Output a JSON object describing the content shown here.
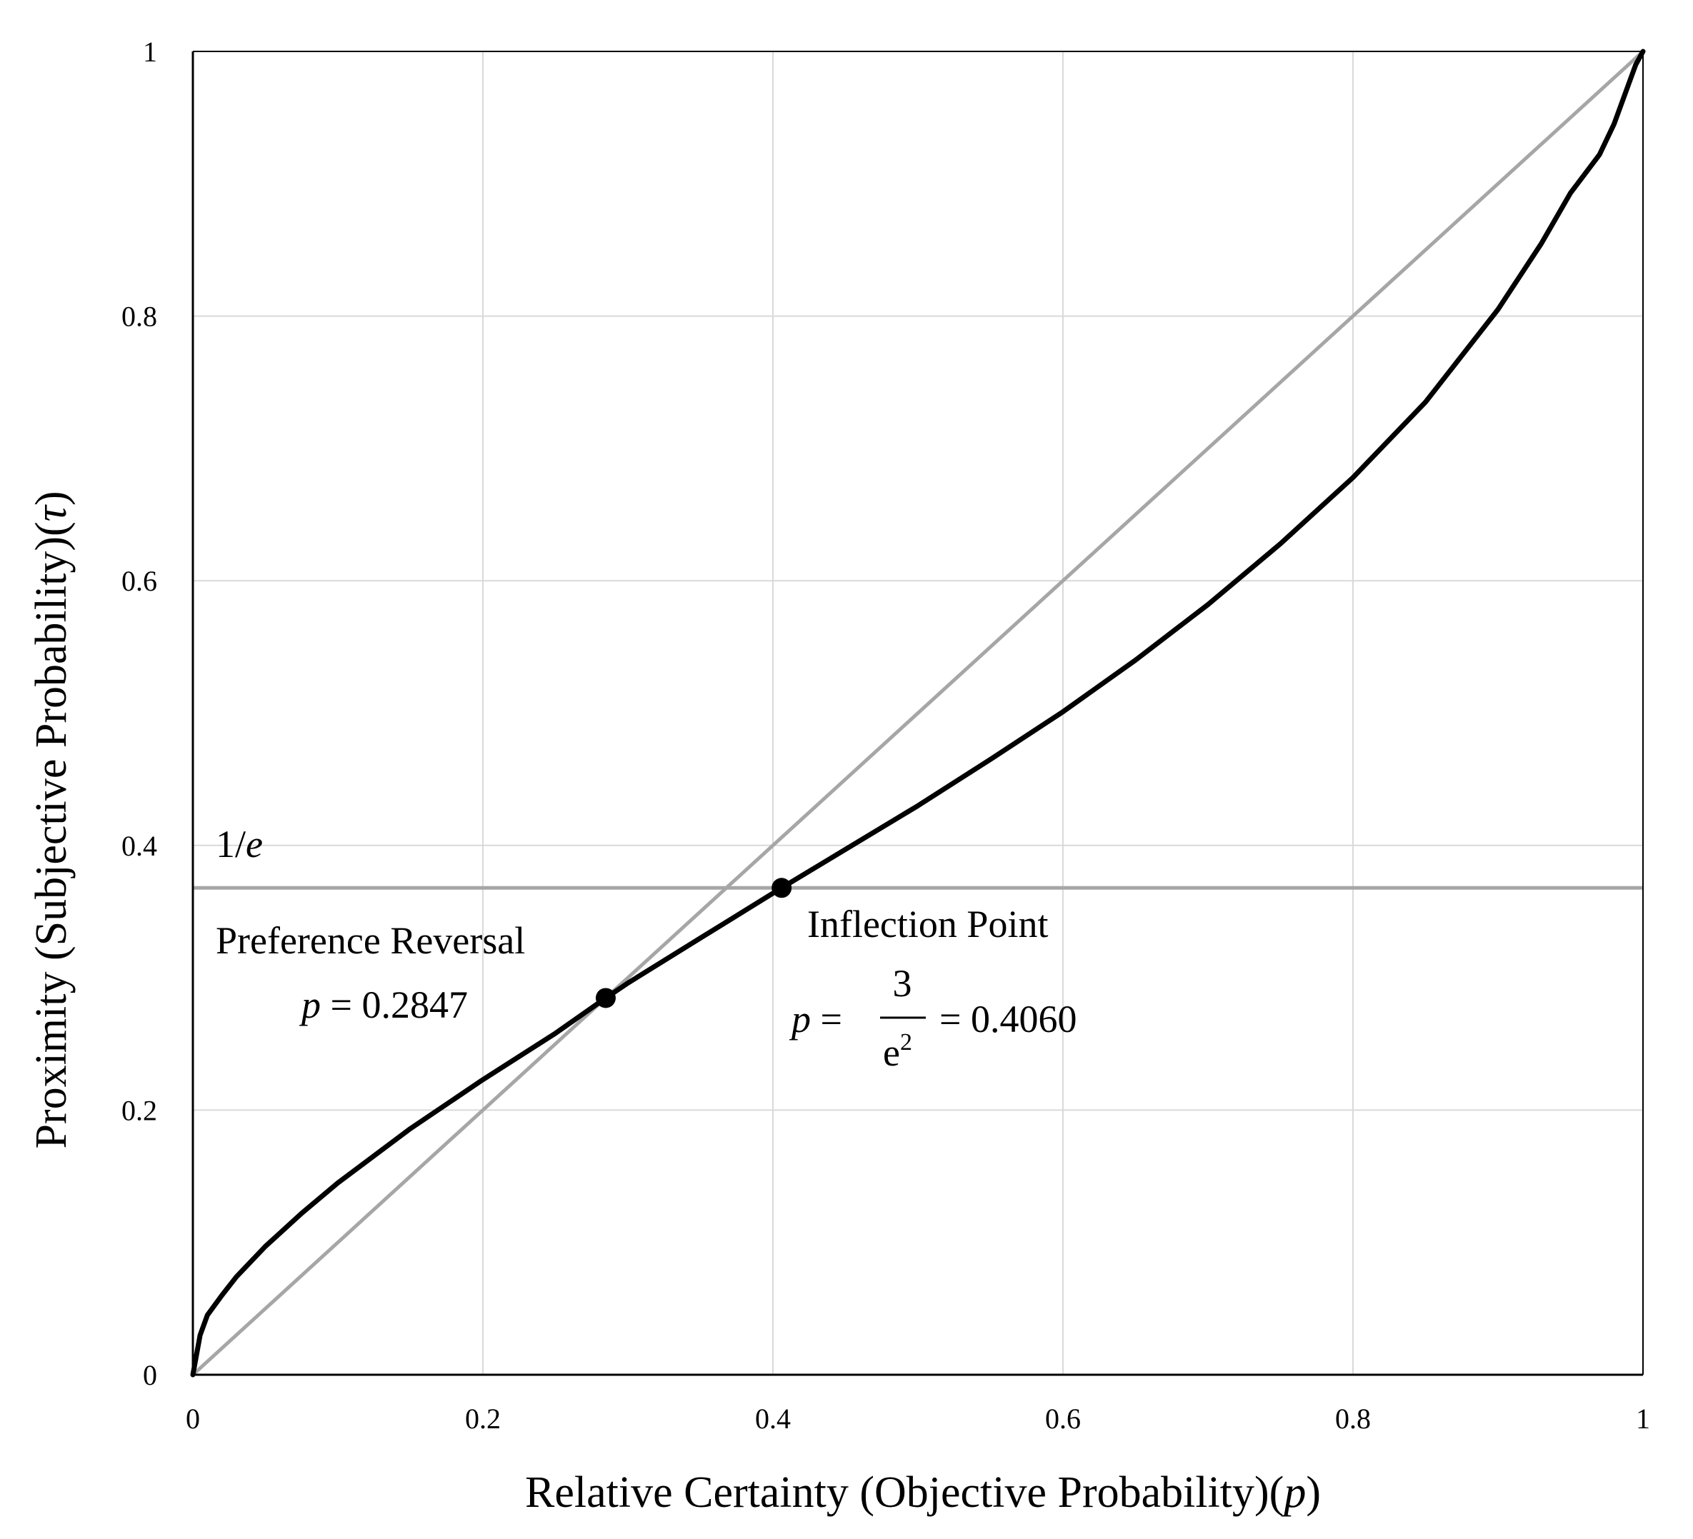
{
  "chart_data": {
    "type": "line",
    "xlabel_main": "Relative Certainty (Objective Probability)(",
    "xlabel_var": "p",
    "xlabel_close": ")",
    "ylabel_main": "Proximity (Subjective Probability)(",
    "ylabel_var": "τ",
    "ylabel_close": ")",
    "xlim": [
      0,
      1
    ],
    "ylim": [
      0,
      1
    ],
    "x_ticks": [
      "0",
      "0.2",
      "0.4",
      "0.6",
      "0.8",
      "1"
    ],
    "y_ticks": [
      "0",
      "0.2",
      "0.4",
      "0.6",
      "0.8",
      "1"
    ],
    "grid": true,
    "colors": {
      "curve": "#000000",
      "diagonal": "#a6a6a6",
      "reference_line": "#a6a6a6",
      "grid": "#d9d9d9"
    },
    "series": [
      {
        "style": "solid-black",
        "x": [
          0,
          0.005,
          0.01,
          0.02,
          0.03,
          0.05,
          0.075,
          0.1,
          0.15,
          0.2,
          0.25,
          0.2847,
          0.3,
          0.35,
          0.406,
          0.45,
          0.5,
          0.55,
          0.6,
          0.65,
          0.7,
          0.75,
          0.8,
          0.85,
          0.9,
          0.93,
          0.95,
          0.97,
          0.98,
          0.99,
          0.995,
          1.0
        ],
        "y": [
          0,
          0.03,
          0.045,
          0.06,
          0.074,
          0.097,
          0.122,
          0.145,
          0.186,
          0.223,
          0.258,
          0.2847,
          0.296,
          0.33,
          0.3679,
          0.397,
          0.43,
          0.465,
          0.501,
          0.54,
          0.582,
          0.628,
          0.678,
          0.735,
          0.805,
          0.855,
          0.893,
          0.922,
          0.945,
          0.975,
          0.99,
          1.0
        ]
      },
      {
        "style": "gray-diagonal",
        "x": [
          0,
          1
        ],
        "y": [
          0,
          1
        ]
      }
    ],
    "reference_line": {
      "y": 0.3679,
      "label_prefix": "1/",
      "label_var": "e"
    },
    "points": [
      {
        "x": 0.2847,
        "y": 0.2847
      },
      {
        "x": 0.406,
        "y": 0.3679
      }
    ],
    "annotations": {
      "preference_reversal": {
        "title": "Preference Reversal",
        "var": "p",
        "eq": " = 0.2847"
      },
      "inflection_point": {
        "title": "Inflection Point",
        "var": "p",
        "eq": " =",
        "frac_num": "3",
        "frac_den": "e",
        "frac_den_sup": "2",
        "rhs": "= 0.4060"
      }
    }
  }
}
